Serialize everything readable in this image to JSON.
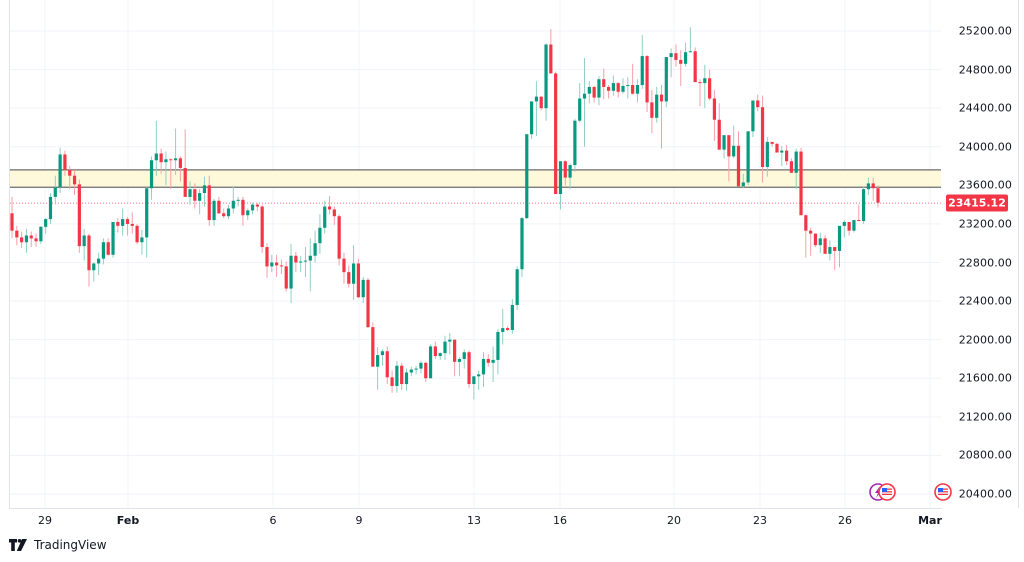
{
  "chart_data": {
    "type": "candlestick",
    "title": "",
    "xlabel": "",
    "ylabel": "",
    "ylim": [
      20300,
      25400
    ],
    "grid": true,
    "y_ticks": [
      "25200.00",
      "24800.00",
      "24400.00",
      "24000.00",
      "23600.00",
      "23200.00",
      "22800.00",
      "22400.00",
      "22000.00",
      "21600.00",
      "21200.00",
      "20800.00",
      "20400.00"
    ],
    "x_ticks": [
      "29",
      "Feb",
      "6",
      "9",
      "13",
      "16",
      "20",
      "23",
      "26",
      "Mar"
    ],
    "last_price": "23415.12",
    "resistance_zone": {
      "low": 23580,
      "high": 23760,
      "fill": "#fff9dc",
      "border": "#6b6b6b"
    },
    "colors": {
      "up": "#089981",
      "down": "#f23645",
      "wick_up": "#8fd0c3",
      "wick_down": "#f6a0a8"
    },
    "candles": [
      [
        23310,
        23480,
        23050,
        23130
      ],
      [
        23130,
        23180,
        22980,
        23060
      ],
      [
        23060,
        23120,
        22950,
        23010
      ],
      [
        23010,
        23150,
        22900,
        23080
      ],
      [
        23080,
        23120,
        22960,
        23050
      ],
      [
        23050,
        23100,
        22960,
        23020
      ],
      [
        23020,
        23180,
        22990,
        23170
      ],
      [
        23170,
        23260,
        23100,
        23250
      ],
      [
        23250,
        23520,
        23200,
        23480
      ],
      [
        23480,
        23700,
        23400,
        23580
      ],
      [
        23580,
        23990,
        23520,
        23920
      ],
      [
        23920,
        23960,
        23700,
        23760
      ],
      [
        23760,
        23800,
        23560,
        23700
      ],
      [
        23700,
        23760,
        23500,
        23610
      ],
      [
        23610,
        23660,
        22900,
        22970
      ],
      [
        22970,
        23150,
        22820,
        23080
      ],
      [
        23080,
        23100,
        22550,
        22720
      ],
      [
        22720,
        22800,
        22600,
        22790
      ],
      [
        22790,
        22900,
        22670,
        22840
      ],
      [
        22840,
        23050,
        22780,
        23010
      ],
      [
        23010,
        23050,
        22870,
        22880
      ],
      [
        22880,
        23220,
        22850,
        23220
      ],
      [
        23220,
        23260,
        23110,
        23180
      ],
      [
        23180,
        23360,
        23080,
        23250
      ],
      [
        23250,
        23270,
        23080,
        23200
      ],
      [
        23200,
        23320,
        23100,
        23180
      ],
      [
        23180,
        23200,
        22990,
        23010
      ],
      [
        23010,
        23140,
        22880,
        23060
      ],
      [
        23060,
        23580,
        22850,
        23570
      ],
      [
        23570,
        23900,
        23450,
        23860
      ],
      [
        23860,
        24270,
        23700,
        23930
      ],
      [
        23930,
        23980,
        23720,
        23840
      ],
      [
        23840,
        23950,
        23600,
        23870
      ],
      [
        23870,
        23880,
        23560,
        23860
      ],
      [
        23860,
        24190,
        23710,
        23880
      ],
      [
        23880,
        23900,
        23640,
        23780
      ],
      [
        23780,
        24180,
        23480,
        23480
      ],
      [
        23480,
        23640,
        23400,
        23560
      ],
      [
        23560,
        23620,
        23360,
        23440
      ],
      [
        23440,
        23560,
        23300,
        23520
      ],
      [
        23520,
        23690,
        23380,
        23600
      ],
      [
        23600,
        23700,
        23180,
        23240
      ],
      [
        23240,
        23460,
        23180,
        23440
      ],
      [
        23440,
        23480,
        23300,
        23310
      ],
      [
        23310,
        23360,
        23260,
        23280
      ],
      [
        23280,
        23400,
        23250,
        23360
      ],
      [
        23360,
        23590,
        23310,
        23440
      ],
      [
        23440,
        23480,
        23380,
        23450
      ],
      [
        23450,
        23480,
        23180,
        23290
      ],
      [
        23290,
        23360,
        23240,
        23340
      ],
      [
        23340,
        23420,
        23300,
        23400
      ],
      [
        23400,
        23420,
        23330,
        23380
      ],
      [
        23380,
        23400,
        22900,
        22960
      ],
      [
        22960,
        23000,
        22640,
        22760
      ],
      [
        22760,
        22880,
        22700,
        22800
      ],
      [
        22800,
        22880,
        22650,
        22770
      ],
      [
        22770,
        22830,
        22680,
        22760
      ],
      [
        22760,
        22810,
        22500,
        22530
      ],
      [
        22530,
        22990,
        22380,
        22870
      ],
      [
        22870,
        22910,
        22700,
        22800
      ],
      [
        22800,
        22870,
        22700,
        22810
      ],
      [
        22810,
        22960,
        22650,
        22820
      ],
      [
        22820,
        23050,
        22500,
        22870
      ],
      [
        22870,
        23130,
        22800,
        23000
      ],
      [
        23000,
        23300,
        22890,
        23160
      ],
      [
        23160,
        23440,
        23100,
        23380
      ],
      [
        23380,
        23490,
        23300,
        23350
      ],
      [
        23350,
        23380,
        23190,
        23280
      ],
      [
        23280,
        23300,
        22770,
        22840
      ],
      [
        22840,
        22900,
        22580,
        22700
      ],
      [
        22700,
        22770,
        22540,
        22580
      ],
      [
        22580,
        22980,
        22410,
        22790
      ],
      [
        22790,
        22840,
        22430,
        22440
      ],
      [
        22440,
        22650,
        22380,
        22620
      ],
      [
        22620,
        22640,
        22120,
        22130
      ],
      [
        22130,
        22180,
        21780,
        21720
      ],
      [
        21720,
        21920,
        21480,
        21840
      ],
      [
        21840,
        21900,
        21730,
        21880
      ],
      [
        21880,
        21930,
        21540,
        21610
      ],
      [
        21610,
        21680,
        21450,
        21520
      ],
      [
        21520,
        21780,
        21450,
        21730
      ],
      [
        21730,
        21760,
        21480,
        21540
      ],
      [
        21540,
        21700,
        21470,
        21660
      ],
      [
        21660,
        21720,
        21620,
        21690
      ],
      [
        21690,
        21730,
        21640,
        21700
      ],
      [
        21700,
        21780,
        21650,
        21760
      ],
      [
        21760,
        21770,
        21560,
        21600
      ],
      [
        21600,
        21950,
        21600,
        21930
      ],
      [
        21930,
        21980,
        21800,
        21830
      ],
      [
        21830,
        21870,
        21790,
        21860
      ],
      [
        21860,
        22040,
        21790,
        21980
      ],
      [
        21980,
        22070,
        21850,
        22000
      ],
      [
        22000,
        22000,
        21620,
        21770
      ],
      [
        21770,
        21820,
        21620,
        21800
      ],
      [
        21800,
        21900,
        21700,
        21870
      ],
      [
        21870,
        21890,
        21500,
        21540
      ],
      [
        21540,
        21600,
        21380,
        21620
      ],
      [
        21620,
        21680,
        21480,
        21640
      ],
      [
        21640,
        21870,
        21510,
        21800
      ],
      [
        21800,
        21850,
        21720,
        21760
      ],
      [
        21760,
        21930,
        21560,
        21790
      ],
      [
        21790,
        22110,
        21640,
        22080
      ],
      [
        22080,
        22320,
        21950,
        22120
      ],
      [
        22120,
        22140,
        22090,
        22100
      ],
      [
        22100,
        22420,
        22060,
        22360
      ],
      [
        22360,
        22760,
        22310,
        22730
      ],
      [
        22730,
        23270,
        22650,
        23260
      ],
      [
        23260,
        24130,
        23250,
        24130
      ],
      [
        24130,
        24420,
        24080,
        24470
      ],
      [
        24470,
        24680,
        24110,
        24520
      ],
      [
        24520,
        24490,
        24380,
        24400
      ],
      [
        24400,
        25070,
        24270,
        25060
      ],
      [
        25060,
        25220,
        24780,
        24760
      ],
      [
        24760,
        24780,
        23550,
        23510
      ],
      [
        23510,
        23850,
        23350,
        23850
      ],
      [
        23850,
        23860,
        23600,
        23680
      ],
      [
        23680,
        23830,
        23560,
        23810
      ],
      [
        23810,
        24290,
        23740,
        24270
      ],
      [
        24270,
        24660,
        24250,
        24500
      ],
      [
        24500,
        24920,
        24000,
        24550
      ],
      [
        24550,
        24680,
        24450,
        24620
      ],
      [
        24620,
        24630,
        24460,
        24510
      ],
      [
        24510,
        24730,
        24430,
        24700
      ],
      [
        24700,
        24810,
        24490,
        24620
      ],
      [
        24620,
        24640,
        24500,
        24580
      ],
      [
        24580,
        24740,
        24530,
        24660
      ],
      [
        24660,
        24670,
        24510,
        24570
      ],
      [
        24570,
        24710,
        24550,
        24630
      ],
      [
        24630,
        24720,
        24500,
        24640
      ],
      [
        24640,
        24860,
        24540,
        24550
      ],
      [
        24550,
        24700,
        24460,
        24640
      ],
      [
        24640,
        25160,
        24600,
        24940
      ],
      [
        24940,
        24950,
        24360,
        24460
      ],
      [
        24460,
        24590,
        24140,
        24300
      ],
      [
        24300,
        24620,
        24250,
        24540
      ],
      [
        24540,
        24640,
        23980,
        24470
      ],
      [
        24470,
        24930,
        24410,
        24930
      ],
      [
        24930,
        25020,
        24720,
        24970
      ],
      [
        24970,
        25060,
        24830,
        24900
      ],
      [
        24900,
        25000,
        24630,
        24860
      ],
      [
        24860,
        25080,
        24830,
        24980
      ],
      [
        24980,
        25240,
        24990,
        24990
      ],
      [
        24990,
        25030,
        24720,
        24670
      ],
      [
        24670,
        24700,
        24420,
        24660
      ],
      [
        24660,
        24850,
        24400,
        24710
      ],
      [
        24710,
        24800,
        24480,
        24500
      ],
      [
        24500,
        24590,
        24060,
        24280
      ],
      [
        24280,
        24450,
        24020,
        23970
      ],
      [
        23970,
        24040,
        23880,
        24120
      ],
      [
        24120,
        24060,
        23640,
        23900
      ],
      [
        23900,
        24220,
        23880,
        24010
      ],
      [
        24010,
        24160,
        23600,
        23590
      ],
      [
        23590,
        23720,
        23570,
        23630
      ],
      [
        23630,
        24100,
        23600,
        24160
      ],
      [
        24160,
        24480,
        24100,
        24480
      ],
      [
        24480,
        24540,
        24370,
        24410
      ],
      [
        24410,
        24530,
        23630,
        23790
      ],
      [
        23790,
        24100,
        23690,
        24050
      ],
      [
        24050,
        24050,
        24000,
        24030
      ],
      [
        24030,
        24040,
        23950,
        23940
      ],
      [
        23940,
        24010,
        23800,
        23960
      ],
      [
        23960,
        24020,
        23810,
        23850
      ],
      [
        23850,
        23880,
        23740,
        23730
      ],
      [
        23730,
        23980,
        23560,
        23950
      ],
      [
        23950,
        23990,
        23720,
        23290
      ],
      [
        23290,
        23300,
        22850,
        23130
      ],
      [
        23130,
        23160,
        22870,
        23100
      ],
      [
        23100,
        23100,
        22960,
        22980
      ],
      [
        22980,
        23110,
        22900,
        23050
      ],
      [
        23050,
        23080,
        22900,
        22890
      ],
      [
        22890,
        23030,
        22820,
        22960
      ],
      [
        22960,
        22960,
        22720,
        22920
      ],
      [
        22920,
        23160,
        22750,
        23180
      ],
      [
        23180,
        23240,
        23060,
        23220
      ],
      [
        23220,
        23220,
        23080,
        23130
      ],
      [
        23130,
        23230,
        23110,
        23240
      ],
      [
        23240,
        23400,
        23230,
        23230
      ],
      [
        23230,
        23580,
        23200,
        23560
      ],
      [
        23560,
        23680,
        23500,
        23620
      ],
      [
        23620,
        23680,
        23440,
        23570
      ],
      [
        23570,
        23600,
        23370,
        23420
      ]
    ],
    "event_markers": [
      {
        "type": "multi",
        "icons": [
          "lightning-icon",
          "us-flag-icon"
        ]
      },
      {
        "type": "single",
        "icons": [
          "us-flag-icon"
        ]
      }
    ]
  },
  "branding": {
    "name": "TradingView"
  }
}
